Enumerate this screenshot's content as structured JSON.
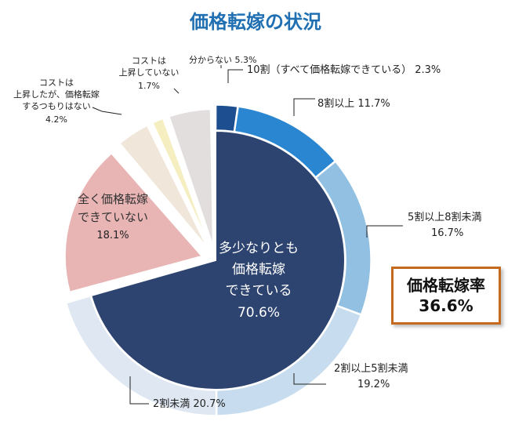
{
  "chart_data": {
    "type": "pie",
    "title": "価格転嫁の状況",
    "outer_ring": {
      "slices": [
        {
          "label": "10割（すべて価格転嫁できている）",
          "value": 2.3,
          "color": "#1d4e8f"
        },
        {
          "label": "8割以上",
          "value": 11.7,
          "color": "#2a86d1"
        },
        {
          "label": "5割以上8割未満",
          "value": 16.7,
          "color": "#92c0e3"
        },
        {
          "label": "2割以上5割未満",
          "value": 19.2,
          "color": "#c7dcee"
        },
        {
          "label": "2割未満",
          "value": 20.7,
          "color": "#dfe8f2"
        }
      ]
    },
    "inner_slices": [
      {
        "label_lines": [
          "多少なりとも",
          "価格転嫁",
          "できている"
        ],
        "value": 70.6,
        "color": "#2e4470"
      },
      {
        "label_lines": [
          "全く価格転嫁",
          "できていない"
        ],
        "value": 18.1,
        "color": "#e8b4b4"
      },
      {
        "label_lines": [
          "コストは",
          "上昇したが、価格転嫁",
          "するつもりはない"
        ],
        "value": 4.2,
        "color": "#f0e6d9"
      },
      {
        "label_lines": [
          "コストは",
          "上昇していない"
        ],
        "value": 1.7,
        "color": "#f4eec0"
      },
      {
        "label_lines": [
          "分からない"
        ],
        "value": 5.3,
        "color": "#e2dedd"
      }
    ],
    "callout": {
      "title": "価格転嫁率",
      "value": "36.6%"
    }
  }
}
